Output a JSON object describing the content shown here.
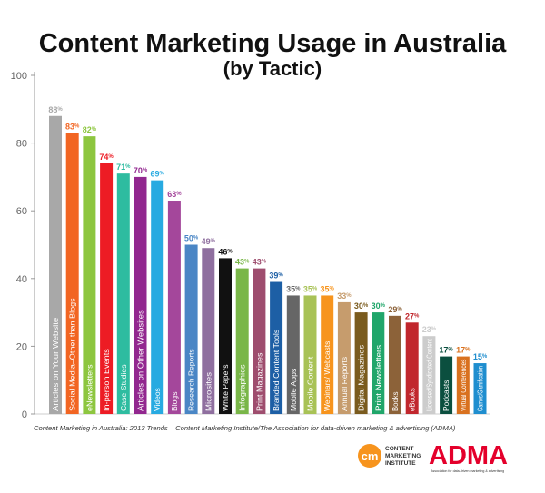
{
  "chart_data": {
    "type": "bar",
    "title": "Content Marketing Usage in Australia",
    "subtitle": "(by Tactic)",
    "xlabel": "",
    "ylabel": "",
    "ylim": [
      0,
      100
    ],
    "yticks": [
      0,
      20,
      40,
      60,
      80,
      100
    ],
    "grid": false,
    "categories": [
      "Articles on Your Website",
      "Social Media–Other than Blogs",
      "eNewsletters",
      "In-person Events",
      "Case Studies",
      "Articles on Other Websites",
      "Videos",
      "Blogs",
      "Research Reports",
      "Microsites",
      "White Papers",
      "Infographics",
      "Print Magazines",
      "Branded Content Tools",
      "Mobile Apps",
      "Mobile Content",
      "Webinars/ Webcasts",
      "Annual Reports",
      "Digital Magazines",
      "Print Newsletters",
      "Books",
      "eBooks",
      "Licensed/Syndicated Content",
      "Podcasts",
      "Virtual Conferences",
      "Games/Gamification"
    ],
    "values": [
      88,
      83,
      82,
      74,
      71,
      70,
      69,
      63,
      50,
      49,
      46,
      43,
      43,
      39,
      35,
      35,
      35,
      33,
      30,
      30,
      29,
      27,
      23,
      17,
      17,
      15
    ],
    "value_suffix": "%",
    "colors": [
      "#a8a8a8",
      "#f26522",
      "#8dc63f",
      "#ed1c24",
      "#2ebca0",
      "#92278f",
      "#27aae1",
      "#a4479b",
      "#4a86c5",
      "#8f6f9f",
      "#111111",
      "#79b648",
      "#9e4d6e",
      "#1d5fa5",
      "#666666",
      "#a8c256",
      "#f7941d",
      "#c69c6d",
      "#7a5b1e",
      "#20a66a",
      "#8c6239",
      "#c1272d",
      "#cccccc",
      "#0b4f3f",
      "#d9711f",
      "#1f8ecf"
    ]
  },
  "source": "Content Marketing in Australia: 2013 Trends – Content Marketing Institute/The Association for data-driven marketing & advertising (ADMA)",
  "logos": {
    "cmi_mark": "cm",
    "cmi_line1": "CONTENT",
    "cmi_line2": "MARKETING",
    "cmi_line3": "INSTITUTE",
    "adma_text": "ADMA",
    "adma_tagline": "Association for data-driven marketing & advertising",
    "cmi_color": "#f7941d",
    "adma_color": "#e4002b"
  }
}
